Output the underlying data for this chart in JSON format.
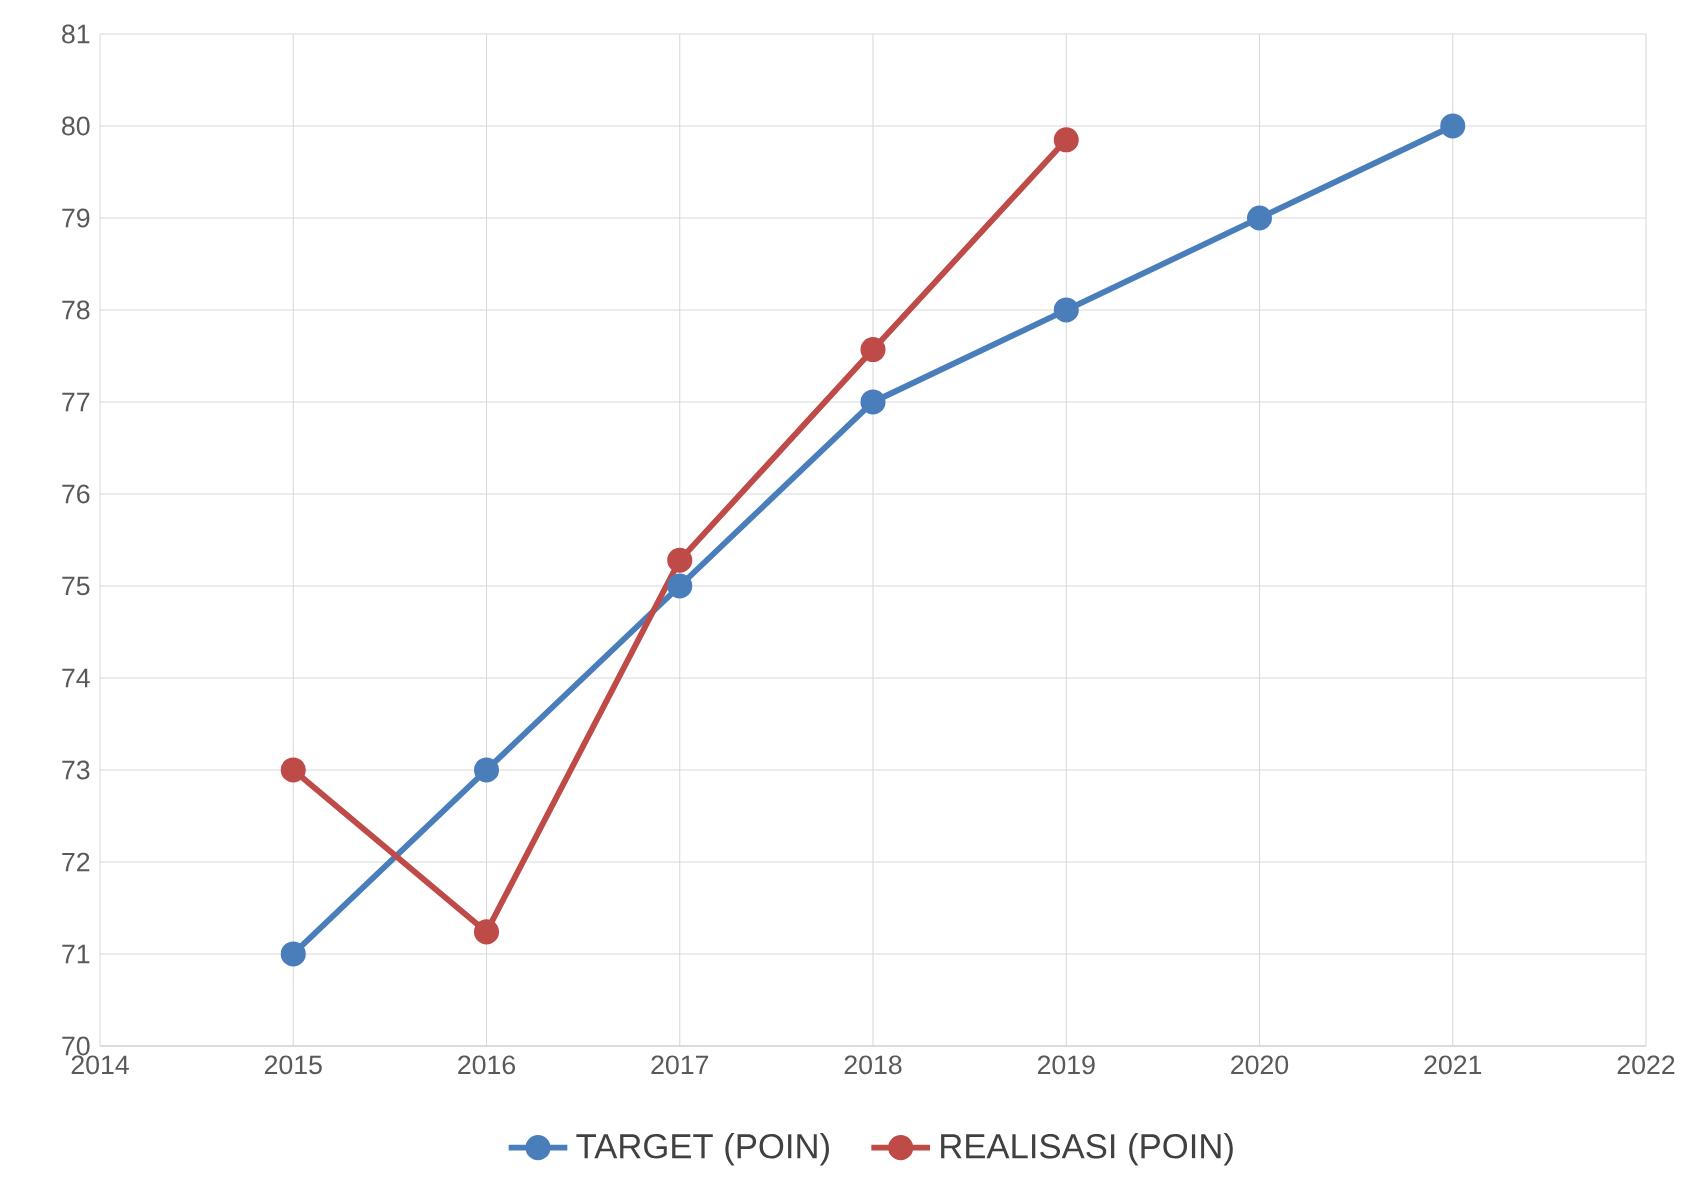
{
  "chart_data": {
    "type": "line",
    "x": [
      2015,
      2016,
      2017,
      2018,
      2019,
      2020,
      2021
    ],
    "series": [
      {
        "name": "TARGET (POIN)",
        "color": "#4a7ebb",
        "values": [
          71,
          73,
          75,
          77,
          78,
          79,
          80
        ]
      },
      {
        "name": "REALISASI (POIN)",
        "color": "#be4b48",
        "values": [
          73,
          71.24,
          75.28,
          77.57,
          79.85,
          null,
          null
        ]
      }
    ],
    "xlim": [
      2014,
      2022
    ],
    "xticks": [
      2014,
      2015,
      2016,
      2017,
      2018,
      2019,
      2020,
      2021,
      2022
    ],
    "ylim": [
      70,
      81
    ],
    "yticks": [
      70,
      71,
      72,
      73,
      74,
      75,
      76,
      77,
      78,
      79,
      80,
      81
    ],
    "grid": true,
    "legend": "bottom",
    "marker": "circle",
    "line_style": "solid"
  }
}
